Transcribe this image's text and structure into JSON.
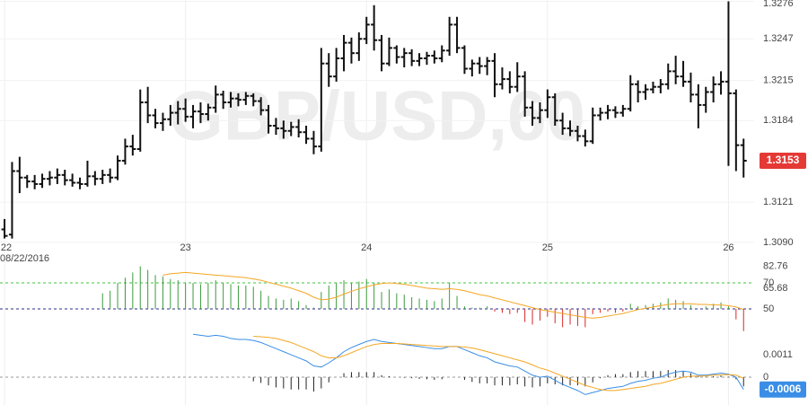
{
  "chart_data": [
    {
      "type": "ohlc",
      "watermark": "GBP/USD,60",
      "date_label": "08/22/2016",
      "color": "#111111",
      "x": [
        0,
        1,
        2,
        3,
        4,
        5,
        6,
        7,
        8,
        9,
        10,
        11,
        12,
        13,
        14,
        15,
        16,
        17,
        18,
        19,
        20,
        21,
        22,
        23,
        24,
        25,
        26,
        27,
        28,
        29,
        30,
        31,
        32,
        33,
        34,
        35,
        36,
        37,
        38,
        39,
        40,
        41,
        42,
        43,
        44,
        45,
        46,
        47,
        48,
        49,
        50,
        51,
        52,
        53,
        54,
        55,
        56,
        57,
        58,
        59,
        60,
        61,
        62,
        63,
        64,
        65,
        66,
        67,
        68,
        69,
        70,
        71,
        72,
        73,
        74,
        75,
        76,
        77,
        78,
        79,
        80,
        81,
        82,
        83,
        84,
        85,
        86,
        87,
        88,
        89,
        90,
        91,
        92,
        93,
        94,
        95,
        96,
        97,
        98
      ],
      "open": [
        1.31,
        1.3096,
        1.3145,
        1.314,
        1.3137,
        1.3135,
        1.3139,
        1.314,
        1.3142,
        1.3138,
        1.3136,
        1.3135,
        1.3141,
        1.3139,
        1.3142,
        1.314,
        1.3153,
        1.3164,
        1.3162,
        1.3198,
        1.3188,
        1.3182,
        1.3185,
        1.319,
        1.3193,
        1.3187,
        1.3191,
        1.3189,
        1.3194,
        1.3204,
        1.3198,
        1.3201,
        1.32,
        1.3203,
        1.3199,
        1.3192,
        1.318,
        1.3178,
        1.3176,
        1.3179,
        1.3175,
        1.317,
        1.3164,
        1.3228,
        1.3218,
        1.3232,
        1.3244,
        1.3236,
        1.3247,
        1.3258,
        1.3246,
        1.3228,
        1.324,
        1.3233,
        1.3236,
        1.323,
        1.3232,
        1.3234,
        1.3232,
        1.3238,
        1.3258,
        1.324,
        1.3224,
        1.3228,
        1.3226,
        1.323,
        1.3212,
        1.3216,
        1.321,
        1.3218,
        1.3194,
        1.3186,
        1.3192,
        1.3202,
        1.3184,
        1.3178,
        1.3176,
        1.3172,
        1.3168,
        1.3188,
        1.319,
        1.3192,
        1.319,
        1.3193,
        1.3212,
        1.3206,
        1.3208,
        1.321,
        1.3212,
        1.3222,
        1.3218,
        1.3214,
        1.3204,
        1.3196,
        1.3206,
        1.3212,
        1.3214,
        1.3205,
        1.3165
      ],
      "high": [
        1.3108,
        1.3152,
        1.3156,
        1.3142,
        1.3142,
        1.3143,
        1.3145,
        1.3147,
        1.3146,
        1.3143,
        1.314,
        1.3153,
        1.3145,
        1.3146,
        1.3147,
        1.3157,
        1.317,
        1.3173,
        1.3208,
        1.321,
        1.3193,
        1.319,
        1.3196,
        1.3199,
        1.3201,
        1.3196,
        1.3198,
        1.3197,
        1.3211,
        1.3207,
        1.3206,
        1.3205,
        1.3206,
        1.3205,
        1.3202,
        1.3196,
        1.3186,
        1.3184,
        1.3183,
        1.3185,
        1.318,
        1.3176,
        1.324,
        1.3236,
        1.324,
        1.325,
        1.3248,
        1.3252,
        1.3264,
        1.3273,
        1.325,
        1.3248,
        1.3242,
        1.324,
        1.3239,
        1.3236,
        1.3237,
        1.3238,
        1.3242,
        1.3264,
        1.3264,
        1.3242,
        1.3231,
        1.3233,
        1.3233,
        1.3236,
        1.3225,
        1.3222,
        1.3229,
        1.3222,
        1.3199,
        1.3198,
        1.3208,
        1.3205,
        1.319,
        1.3184,
        1.318,
        1.3177,
        1.3194,
        1.3194,
        1.3196,
        1.3195,
        1.3196,
        1.3219,
        1.3215,
        1.3212,
        1.3214,
        1.3216,
        1.3228,
        1.3234,
        1.323,
        1.3221,
        1.3212,
        1.321,
        1.3218,
        1.3222,
        1.3276,
        1.3208,
        1.317
      ],
      "low": [
        1.3093,
        1.3093,
        1.3128,
        1.3132,
        1.3131,
        1.3132,
        1.3134,
        1.3135,
        1.3134,
        1.3133,
        1.3131,
        1.3133,
        1.3134,
        1.3135,
        1.3136,
        1.3138,
        1.315,
        1.3157,
        1.316,
        1.3182,
        1.3178,
        1.3176,
        1.318,
        1.3181,
        1.3183,
        1.3178,
        1.3182,
        1.3184,
        1.319,
        1.3193,
        1.3194,
        1.3195,
        1.3196,
        1.3195,
        1.3188,
        1.3174,
        1.3173,
        1.317,
        1.3172,
        1.3171,
        1.3166,
        1.3158,
        1.316,
        1.321,
        1.3214,
        1.3222,
        1.3228,
        1.323,
        1.3243,
        1.3238,
        1.3222,
        1.3226,
        1.3228,
        1.3225,
        1.3226,
        1.3226,
        1.3227,
        1.3228,
        1.3229,
        1.3234,
        1.3236,
        1.322,
        1.3218,
        1.322,
        1.3219,
        1.3202,
        1.3208,
        1.3205,
        1.3206,
        1.3187,
        1.318,
        1.3182,
        1.3186,
        1.318,
        1.3173,
        1.3172,
        1.3168,
        1.3164,
        1.3166,
        1.3184,
        1.3185,
        1.3186,
        1.3187,
        1.3191,
        1.3198,
        1.32,
        1.3205,
        1.3205,
        1.3208,
        1.3212,
        1.321,
        1.3198,
        1.3178,
        1.319,
        1.3198,
        1.3204,
        1.3149,
        1.3145,
        1.314
      ],
      "close": [
        1.3095,
        1.3145,
        1.314,
        1.3137,
        1.3135,
        1.3139,
        1.314,
        1.3142,
        1.3138,
        1.3136,
        1.3135,
        1.3141,
        1.3139,
        1.3142,
        1.314,
        1.3153,
        1.3164,
        1.3162,
        1.3198,
        1.3188,
        1.3182,
        1.3185,
        1.319,
        1.3193,
        1.3187,
        1.3191,
        1.3189,
        1.3194,
        1.3204,
        1.3198,
        1.3201,
        1.32,
        1.3203,
        1.3199,
        1.3192,
        1.318,
        1.3178,
        1.3176,
        1.3179,
        1.3175,
        1.317,
        1.3164,
        1.3228,
        1.3218,
        1.3232,
        1.3244,
        1.3236,
        1.3247,
        1.3258,
        1.3246,
        1.3228,
        1.324,
        1.3233,
        1.3236,
        1.323,
        1.3232,
        1.3234,
        1.3232,
        1.3238,
        1.3258,
        1.324,
        1.3224,
        1.3228,
        1.3226,
        1.323,
        1.3212,
        1.3216,
        1.321,
        1.3218,
        1.3194,
        1.3186,
        1.3192,
        1.3202,
        1.3184,
        1.3178,
        1.3176,
        1.3172,
        1.3168,
        1.3188,
        1.319,
        1.3192,
        1.319,
        1.3193,
        1.3212,
        1.3206,
        1.3208,
        1.321,
        1.3212,
        1.3222,
        1.3218,
        1.3214,
        1.3204,
        1.3196,
        1.3206,
        1.3212,
        1.3214,
        1.3205,
        1.3165,
        1.3153
      ],
      "xlim": [
        -0.6,
        99.4
      ],
      "xticks": [
        {
          "value": 0,
          "label": "22"
        },
        {
          "value": 24,
          "label": "23"
        },
        {
          "value": 48,
          "label": "24"
        },
        {
          "value": 72,
          "label": "25"
        },
        {
          "value": 96,
          "label": "26"
        }
      ],
      "ylim": [
        1.3083,
        1.3277
      ],
      "yticks": [
        {
          "value": 1.309,
          "label": "1.3090"
        },
        1.3121,
        1.3184,
        1.3215,
        1.3247,
        1.3276
      ],
      "grid": true,
      "current_label": {
        "color": "#e53935"
      }
    },
    {
      "type": "oscillator",
      "histogram": {
        "up_color": "#3c9a3c",
        "down_color": "#d62728",
        "values": [
          null,
          null,
          null,
          null,
          null,
          null,
          null,
          null,
          null,
          null,
          null,
          null,
          null,
          62,
          64,
          70,
          74,
          78,
          82.76,
          80,
          76,
          75,
          73,
          72,
          70,
          70,
          69,
          70,
          72,
          70,
          69,
          68,
          68,
          67,
          64,
          60,
          58,
          57,
          58,
          56,
          53,
          51,
          63,
          68,
          70,
          72,
          70,
          71,
          73,
          70,
          63,
          65,
          62,
          61,
          59,
          58,
          57,
          56,
          58,
          70,
          60,
          52,
          51,
          51,
          52,
          48,
          47,
          46,
          47,
          40,
          38,
          41,
          44,
          39,
          36,
          38,
          37,
          36,
          46,
          47,
          48,
          47,
          48,
          54,
          52,
          53,
          54,
          55,
          58,
          57,
          56,
          53,
          50,
          52,
          54,
          55,
          52,
          42,
          33
        ]
      },
      "lines": [
        {
          "color": "#f5a623",
          "values": [
            null,
            null,
            null,
            null,
            null,
            null,
            null,
            null,
            null,
            null,
            null,
            null,
            null,
            null,
            null,
            null,
            null,
            null,
            null,
            null,
            null,
            76,
            77,
            77.5,
            78,
            77.5,
            77,
            76.5,
            76,
            75.5,
            75,
            74.5,
            74,
            73,
            72,
            70.5,
            69,
            67.5,
            66,
            64,
            62,
            59,
            57,
            57.5,
            59,
            61.5,
            63.5,
            65.5,
            67,
            68.5,
            69.5,
            70,
            69.5,
            69,
            68,
            67,
            66,
            65.5,
            65,
            65.5,
            65,
            64,
            62.5,
            61,
            60,
            58.5,
            57,
            55.5,
            54,
            52.5,
            51,
            49.5,
            48.5,
            47.5,
            46.5,
            45.5,
            44.5,
            43.5,
            43,
            43.5,
            44.5,
            45.5,
            46.5,
            48,
            49.5,
            50.5,
            51.5,
            52.5,
            53.5,
            54,
            54,
            54,
            53.5,
            53.5,
            53,
            53,
            52.5,
            51.5,
            49.5
          ]
        }
      ],
      "levels": [
        {
          "value": 70,
          "color": "#3cc43c"
        },
        {
          "value": 50,
          "color": "#2b2b8c"
        }
      ],
      "ylim": [
        32.1,
        90.7
      ],
      "yticks": [
        82.76,
        70,
        65.68,
        50
      ]
    },
    {
      "type": "oscillator",
      "histogram": {
        "up_color": "#222222",
        "down_color": "#222222",
        "values": [
          null,
          null,
          null,
          null,
          null,
          null,
          null,
          null,
          null,
          null,
          null,
          null,
          null,
          null,
          null,
          null,
          null,
          null,
          null,
          null,
          null,
          null,
          null,
          null,
          null,
          null,
          null,
          null,
          null,
          null,
          null,
          null,
          null,
          -0.0002,
          -0.00028,
          -0.0004,
          -0.0005,
          -0.00055,
          -0.0006,
          -0.0006,
          -0.0006,
          -0.0007,
          -0.00055,
          -0.00025,
          0,
          0.0002,
          0.00025,
          0.00025,
          0.00025,
          0.00025,
          0.0001,
          5e-05,
          0,
          -3e-05,
          -5e-05,
          -8e-05,
          -0.0001,
          -0.00013,
          -0.0001,
          0,
          0,
          -0.00013,
          -0.00023,
          -0.0003,
          -0.0003,
          -0.0004,
          -0.0004,
          -0.0004,
          -0.00035,
          -0.00045,
          -0.0005,
          -0.00045,
          -0.0003,
          -0.00035,
          -0.0004,
          -0.0004,
          -0.0004,
          -0.00045,
          -0.00025,
          -5e-05,
          0.0001,
          0.00015,
          0.00015,
          0.00025,
          0.0003,
          0.0003,
          0.0003,
          0.0003,
          0.00035,
          0.00035,
          0.0003,
          0.0002,
          5e-05,
          3e-05,
          5e-05,
          8e-05,
          2e-05,
          -0.0001,
          -0.00045
        ]
      },
      "lines": [
        {
          "color": "#3a8ee6",
          "values": [
            null,
            null,
            null,
            null,
            null,
            null,
            null,
            null,
            null,
            null,
            null,
            null,
            null,
            null,
            null,
            null,
            null,
            null,
            null,
            null,
            null,
            null,
            null,
            null,
            null,
            0.0021,
            0.00205,
            0.002,
            0.00205,
            0.002,
            0.0019,
            0.00185,
            0.00185,
            0.0018,
            0.0017,
            0.00155,
            0.0014,
            0.00125,
            0.0011,
            0.00095,
            0.0008,
            0.00055,
            0.0005,
            0.0007,
            0.00095,
            0.00125,
            0.00145,
            0.0016,
            0.00175,
            0.00185,
            0.00175,
            0.0017,
            0.00165,
            0.0016,
            0.00155,
            0.0015,
            0.00145,
            0.0014,
            0.0014,
            0.0015,
            0.0015,
            0.00135,
            0.0012,
            0.00105,
            0.00095,
            0.00075,
            0.00065,
            0.00055,
            0.0005,
            0.0003,
            0.0001,
            0,
            5e-05,
            -0.00015,
            -0.00035,
            -0.0005,
            -0.00065,
            -0.00085,
            -0.00075,
            -0.00065,
            -0.00055,
            -0.0005,
            -0.00045,
            -0.0003,
            -0.0002,
            -0.00015,
            -5e-05,
            0,
            0.00015,
            0.00025,
            0.0003,
            0.00025,
            0.0001,
            0.0001,
            0.00015,
            0.0002,
            0.00015,
            0,
            -0.0006
          ]
        },
        {
          "color": "#f5a623",
          "values": [
            null,
            null,
            null,
            null,
            null,
            null,
            null,
            null,
            null,
            null,
            null,
            null,
            null,
            null,
            null,
            null,
            null,
            null,
            null,
            null,
            null,
            null,
            null,
            null,
            null,
            null,
            null,
            null,
            null,
            null,
            null,
            null,
            null,
            0.002,
            0.00198,
            0.00195,
            0.0019,
            0.0018,
            0.0017,
            0.00155,
            0.0014,
            0.00125,
            0.00105,
            0.00095,
            0.00095,
            0.00105,
            0.0012,
            0.00135,
            0.0015,
            0.0016,
            0.00165,
            0.00165,
            0.00165,
            0.00163,
            0.0016,
            0.00158,
            0.00155,
            0.00153,
            0.0015,
            0.0015,
            0.0015,
            0.00148,
            0.00143,
            0.00135,
            0.00125,
            0.00115,
            0.00105,
            0.00095,
            0.00085,
            0.00075,
            0.0006,
            0.00045,
            0.00035,
            0.0002,
            5e-05,
            -0.0001,
            -0.00025,
            -0.0004,
            -0.0005,
            -0.0006,
            -0.00065,
            -0.00065,
            -0.0006,
            -0.00055,
            -0.0005,
            -0.00045,
            -0.00035,
            -0.0003,
            -0.0002,
            -0.0001,
            0,
            5e-05,
            5e-05,
            7e-05,
            0.0001,
            0.00012,
            0.00013,
            0.0001,
            -5e-05
          ]
        }
      ],
      "levels": [
        {
          "value": 0,
          "color": "#999999"
        }
      ],
      "ylim": [
        -0.00136,
        0.0022
      ],
      "yticks": [
        0.0011,
        0
      ],
      "current_label": {
        "color": "#3a8ee6"
      }
    }
  ]
}
